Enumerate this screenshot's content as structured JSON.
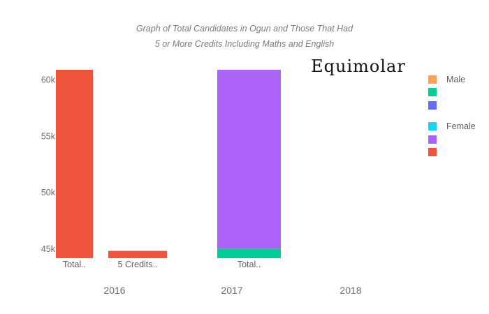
{
  "chart_data": {
    "type": "bar",
    "title_lines": [
      "Graph of Total Candidates in Ogun and Those That Had",
      "5 or More Credits Including Maths and English"
    ],
    "watermark": "Equimolar",
    "ylim": [
      44200,
      60900
    ],
    "yticks": [
      {
        "value": 45000,
        "label": "45k"
      },
      {
        "value": 50000,
        "label": "50k"
      },
      {
        "value": 55000,
        "label": "55k"
      },
      {
        "value": 60000,
        "label": "60k"
      }
    ],
    "years": [
      "2016",
      "2017",
      "2018"
    ],
    "bars": [
      {
        "year": "2016",
        "slot": 0,
        "label": "Total..",
        "segments": [
          {
            "from": 44200,
            "to": 60900,
            "color": "#ef553b"
          }
        ]
      },
      {
        "year": "2016",
        "slot": 1,
        "label": "5 Credits..",
        "segments": [
          {
            "from": 44200,
            "to": 44850,
            "color": "#ef553b"
          }
        ]
      },
      {
        "year": "2017",
        "slot": 0,
        "label": "Total..",
        "segments": [
          {
            "from": 44200,
            "to": 45050,
            "color": "#00cc96"
          },
          {
            "from": 45050,
            "to": 60900,
            "color": "#ab63fa"
          }
        ]
      }
    ],
    "legend": [
      {
        "label": "Male",
        "color": "#ffa15a"
      },
      {
        "label": "",
        "color": "#00cc96"
      },
      {
        "label": "",
        "color": "#636efa"
      },
      {
        "label": "Female",
        "color": "#19d3f3"
      },
      {
        "label": "",
        "color": "#ab63fa"
      },
      {
        "label": "",
        "color": "#ef553b"
      }
    ]
  }
}
